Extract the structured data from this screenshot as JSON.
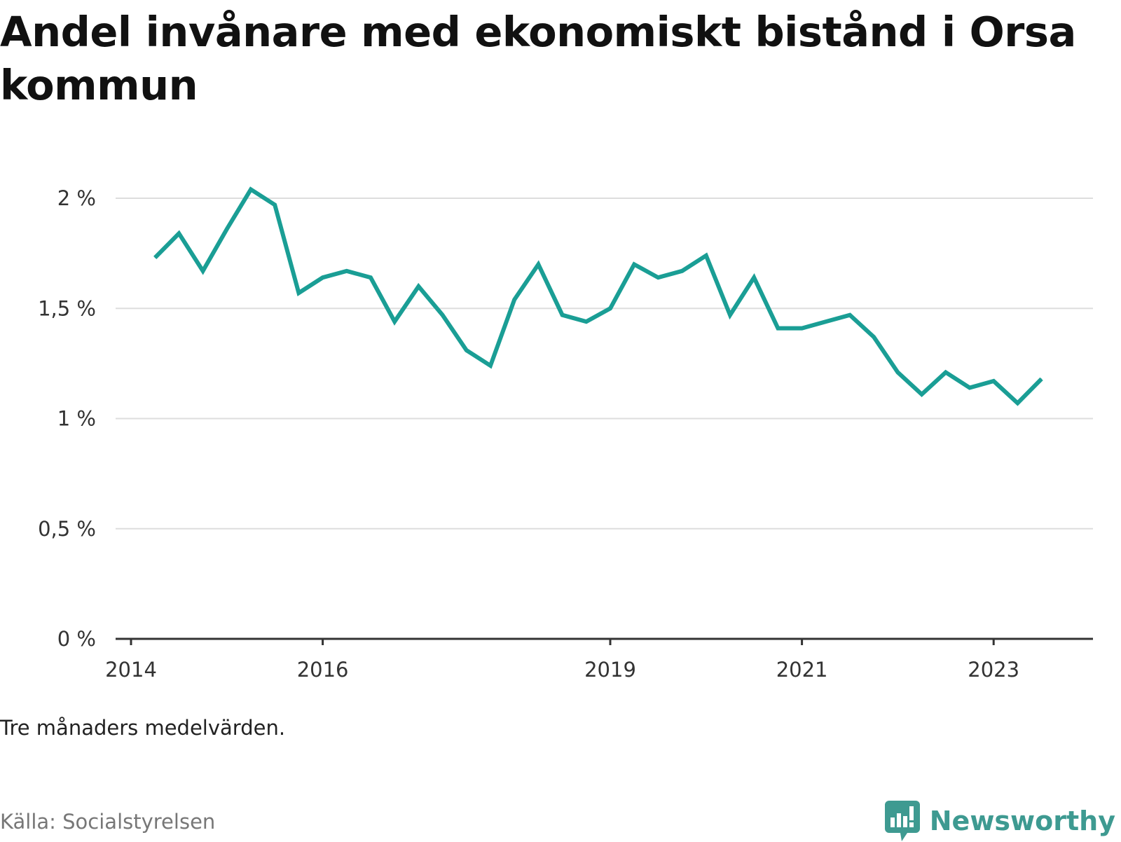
{
  "title": "Andel invånare med ekonomiskt bistånd i Orsa kommun",
  "note": "Tre månaders medelvärden.",
  "source": "Källa: Socialstyrelsen",
  "brand": {
    "name": "Newsworthy",
    "icon": "newsworthy-logo-icon",
    "color": "#3e9a91"
  },
  "chart_data": {
    "type": "line",
    "title": "Andel invånare med ekonomiskt bistånd i Orsa kommun",
    "xlabel": "",
    "ylabel": "",
    "ylim": [
      0,
      2
    ],
    "y_ticks": [
      {
        "value": 0,
        "label": "0 %"
      },
      {
        "value": 0.5,
        "label": "0,5 %"
      },
      {
        "value": 1,
        "label": "1 %"
      },
      {
        "value": 1.5,
        "label": "1,5 %"
      },
      {
        "value": 2,
        "label": "2 %"
      }
    ],
    "x_ticks": [
      "2014",
      "2016",
      "2019",
      "2021",
      "2023"
    ],
    "grid": true,
    "line_color": "#1a9e95",
    "series": [
      {
        "x": [
          "2014-Q2",
          "2014-Q3",
          "2014-Q4",
          "2015-Q1",
          "2015-Q2",
          "2015-Q3",
          "2015-Q4",
          "2016-Q1",
          "2016-Q2",
          "2016-Q3",
          "2016-Q4",
          "2017-Q1",
          "2017-Q2",
          "2017-Q3",
          "2017-Q4",
          "2018-Q1",
          "2018-Q2",
          "2018-Q3",
          "2018-Q4",
          "2019-Q1",
          "2019-Q2",
          "2019-Q3",
          "2019-Q4",
          "2020-Q1",
          "2020-Q2",
          "2020-Q3",
          "2020-Q4",
          "2021-Q1",
          "2021-Q2",
          "2021-Q3",
          "2021-Q4",
          "2022-Q1",
          "2022-Q2",
          "2022-Q3",
          "2022-Q4",
          "2023-Q1",
          "2023-Q2",
          "2023-Q3"
        ],
        "values": [
          1.73,
          1.84,
          1.67,
          1.86,
          2.04,
          1.97,
          1.57,
          1.64,
          1.67,
          1.64,
          1.44,
          1.6,
          1.47,
          1.31,
          1.24,
          1.54,
          1.7,
          1.47,
          1.44,
          1.5,
          1.7,
          1.64,
          1.67,
          1.74,
          1.47,
          1.64,
          1.41,
          1.41,
          1.44,
          1.47,
          1.37,
          1.21,
          1.11,
          1.21,
          1.14,
          1.17,
          1.07,
          1.18
        ]
      }
    ]
  }
}
